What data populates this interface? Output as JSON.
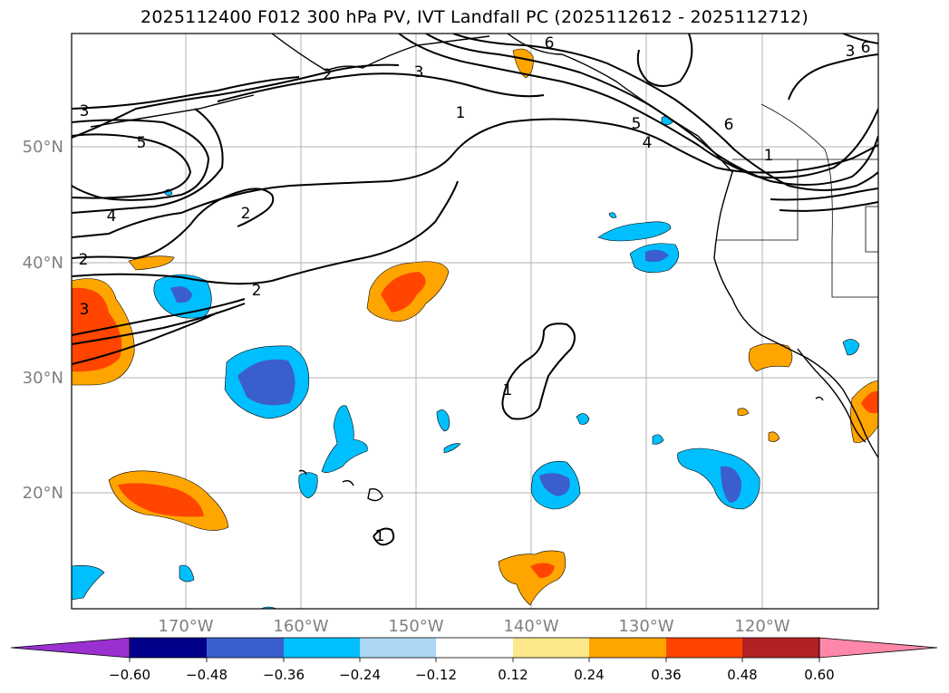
{
  "title": "2025112400 F012 300 hPa PV, IVT Landfall PC (2025112612 - 2025112712)",
  "lon_labels": [
    "170°W",
    "160°W",
    "150°W",
    "140°W",
    "130°W",
    "120°W"
  ],
  "lat_labels": [
    "50°N",
    "40°N",
    "30°N",
    "20°N"
  ],
  "colorbar": {
    "ticks": [
      "−0.60",
      "−0.48",
      "−0.36",
      "−0.24",
      "−0.12",
      "0.12",
      "0.24",
      "0.36",
      "0.48",
      "0.60"
    ],
    "colors": [
      "#9b30d0",
      "#00008b",
      "#3a5fcd",
      "#00bfff",
      "#add8f5",
      "#ffffff",
      "#fde98b",
      "#ffa500",
      "#ff4500",
      "#b22222",
      "#ff88aa"
    ]
  },
  "contour_labels": {
    "c1": "3",
    "c2": "2",
    "c3": "3",
    "c4": "1",
    "c5": "6",
    "c6": "6",
    "c7": "5",
    "c8": "4",
    "c9": "6",
    "c10": "1",
    "c11": "3",
    "c12": "5",
    "c13": "4",
    "c14": "2",
    "c15": "2",
    "c16": "2",
    "c17": "3",
    "c18": "1",
    "c19": "1"
  }
}
